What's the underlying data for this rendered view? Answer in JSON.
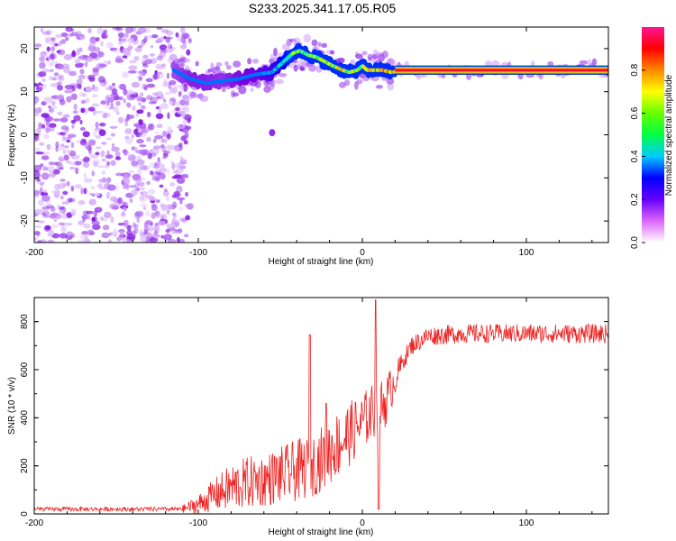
{
  "title": "S233.2025.341.17.05.R05",
  "chart_data": [
    {
      "type": "heatmap",
      "xlabel": "Height of straight line (km)",
      "ylabel": "Frequency (Hz)",
      "xlim": [
        -200,
        150
      ],
      "ylim": [
        -25,
        25
      ],
      "xticks": [
        -200,
        -100,
        0,
        100
      ],
      "yticks": [
        -20,
        -10,
        0,
        10,
        20
      ],
      "colorbar": {
        "label": "Normalized spectral amplitude",
        "range": [
          0.0,
          1.0
        ],
        "ticks": [
          "0.0",
          "0.2",
          "0.4",
          "0.6",
          "0.8"
        ],
        "colors": [
          "#ffffff",
          "#cc99ff",
          "#7700dd",
          "#0000ff",
          "#00ddff",
          "#00ff66",
          "#aaff00",
          "#ffee00",
          "#ff8800",
          "#ff0000",
          "#ff1493"
        ]
      },
      "frequency_track": {
        "x": [
          -115,
          -105,
          -95,
          -85,
          -75,
          -65,
          -55,
          -48,
          -42,
          -38,
          -33,
          -28,
          -23,
          -18,
          -12,
          -8,
          -3,
          0,
          3,
          8,
          12,
          18,
          25,
          40,
          60,
          80,
          100,
          120,
          140,
          150
        ],
        "y": [
          15,
          13,
          12,
          12.5,
          13,
          14,
          14.5,
          17,
          19,
          19.5,
          18.5,
          18,
          17,
          16,
          15,
          14.5,
          15,
          16,
          15,
          15,
          15,
          14.5,
          15,
          15,
          15,
          15,
          15,
          15,
          15.5,
          15
        ],
        "amplitude": [
          0.25,
          0.3,
          0.3,
          0.28,
          0.32,
          0.35,
          0.4,
          0.5,
          0.55,
          0.6,
          0.62,
          0.6,
          0.65,
          0.7,
          0.75,
          0.7,
          0.72,
          0.6,
          0.8,
          0.85,
          0.88,
          0.9,
          0.95,
          1.0,
          1.0,
          1.0,
          1.0,
          1.0,
          0.98,
          0.98
        ]
      },
      "noise_region": {
        "x": [
          -200,
          -105
        ],
        "y": [
          -25,
          25
        ],
        "amplitude": [
          0.05,
          0.2
        ]
      },
      "isolated_spot": {
        "x": -55,
        "y": 0.5
      }
    },
    {
      "type": "line",
      "xlabel": "Height of straight line (km)",
      "ylabel": "SNR (10 * v/v)",
      "xlim": [
        -200,
        150
      ],
      "ylim": [
        0,
        900
      ],
      "xticks": [
        -200,
        -100,
        0,
        100
      ],
      "yticks": [
        0,
        200,
        400,
        600,
        800
      ],
      "series": [
        {
          "name": "SNR",
          "color": "#ee2222",
          "envelope_x": [
            -200,
            -150,
            -110,
            -100,
            -90,
            -80,
            -70,
            -60,
            -50,
            -40,
            -30,
            -20,
            -10,
            0,
            5,
            10,
            15,
            20,
            25,
            30,
            40,
            50,
            60,
            80,
            100,
            120,
            150
          ],
          "envelope_center": [
            20,
            20,
            20,
            40,
            80,
            110,
            130,
            140,
            160,
            180,
            200,
            260,
            320,
            380,
            420,
            430,
            480,
            560,
            640,
            700,
            740,
            745,
            750,
            750,
            750,
            750,
            750
          ],
          "envelope_noise": [
            15,
            15,
            15,
            40,
            70,
            100,
            110,
            110,
            120,
            130,
            130,
            140,
            140,
            120,
            120,
            120,
            110,
            70,
            40,
            40,
            40,
            40,
            40,
            40,
            40,
            40,
            40
          ],
          "spikes": [
            {
              "x": -32,
              "y": 745
            },
            {
              "x": 8,
              "y": 890
            },
            {
              "x": 10,
              "y": 20
            },
            {
              "x": -22,
              "y": 460
            }
          ]
        }
      ]
    }
  ]
}
